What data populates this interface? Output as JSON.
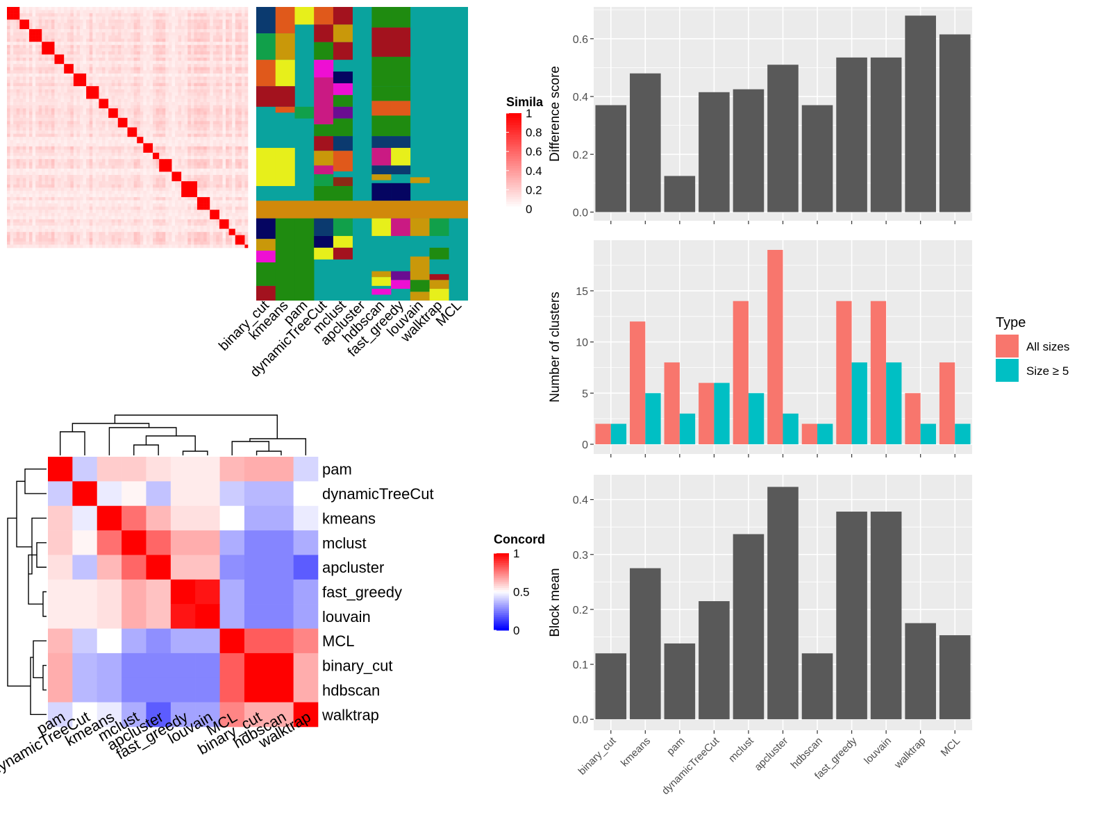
{
  "colors": {
    "panel_bg": "#ebebeb",
    "grid": "#ffffff",
    "bar_dark": "#595959",
    "all_sizes": "#f8766d",
    "size_ge5": "#00bfc4",
    "axis_text": "#4d4d4d",
    "similarity_low": "#ffffff",
    "similarity_high": "#ff0000",
    "concordance_low": "#0000ff",
    "concordance_mid": "#ffffff",
    "concordance_high": "#ff0000"
  },
  "chart_data": [
    {
      "id": "similarity-heatmap",
      "type": "heatmap",
      "legend_title": "Simila",
      "legend_ticks": [
        "1",
        "0.8",
        "0.6",
        "0.4",
        "0.2",
        "0"
      ],
      "matrix_size": 76,
      "block_sizes": [
        4,
        3,
        4,
        4,
        3,
        3,
        4,
        4,
        3,
        3,
        3,
        3,
        2,
        3,
        2,
        4,
        3,
        5,
        4,
        3,
        3,
        2,
        3,
        3
      ],
      "annotation_labels": [
        "binary_cut",
        "kmeans",
        "pam",
        "dynamicTreeCut",
        "mclust",
        "apcluster",
        "hdbscan",
        "fast_greedy",
        "louvain",
        "walktrap",
        "MCL"
      ],
      "annotation_base_color": "#0aa39e",
      "annotation_band_color": "#d1890b",
      "annotation_segments": [
        {
          "col": 0,
          "rows": [
            [
              0,
              0.09,
              "#0b3a6f"
            ],
            [
              0.09,
              0.18,
              "#11a04a"
            ],
            [
              0.18,
              0.27,
              "#e0591b"
            ],
            [
              0.27,
              0.34,
              "#a3121e"
            ],
            [
              0.48,
              0.61,
              "#e7ef1b"
            ],
            [
              0.72,
              0.79,
              "#050561"
            ],
            [
              0.79,
              0.83,
              "#c9980a"
            ],
            [
              0.83,
              0.87,
              "#ee0fd3"
            ],
            [
              0.87,
              0.95,
              "#1f8b10"
            ],
            [
              0.95,
              1,
              "#a3121e"
            ]
          ]
        },
        {
          "col": 1,
          "rows": [
            [
              0,
              0.09,
              "#e0591b"
            ],
            [
              0.09,
              0.18,
              "#c9980a"
            ],
            [
              0.18,
              0.27,
              "#e7ef1b"
            ],
            [
              0.27,
              0.34,
              "#a3121e"
            ],
            [
              0.34,
              0.36,
              "#e0591b"
            ],
            [
              0.48,
              0.61,
              "#e7ef1b"
            ],
            [
              0.72,
              1,
              "#1f8b10"
            ]
          ]
        },
        {
          "col": 2,
          "rows": [
            [
              0,
              0.06,
              "#e7ef1b"
            ],
            [
              0.34,
              0.38,
              "#11a04a"
            ],
            [
              0.72,
              1,
              "#1f8b10"
            ]
          ]
        },
        {
          "col": 3,
          "rows": [
            [
              0,
              0.06,
              "#e0591b"
            ],
            [
              0.06,
              0.12,
              "#a3121e"
            ],
            [
              0.12,
              0.18,
              "#1f8b10"
            ],
            [
              0.18,
              0.24,
              "#ee0fd3"
            ],
            [
              0.24,
              0.4,
              "#ca1a83"
            ],
            [
              0.4,
              0.44,
              "#1f8b10"
            ],
            [
              0.44,
              0.49,
              "#a3121e"
            ],
            [
              0.49,
              0.54,
              "#c9980a"
            ],
            [
              0.54,
              0.57,
              "#ca1a83"
            ],
            [
              0.57,
              0.61,
              "#11a04a"
            ],
            [
              0.61,
              0.66,
              "#1f8b10"
            ],
            [
              0.72,
              0.78,
              "#0b3a6f"
            ],
            [
              0.78,
              0.82,
              "#050561"
            ],
            [
              0.82,
              0.86,
              "#e7ef1b"
            ]
          ]
        },
        {
          "col": 4,
          "rows": [
            [
              0,
              0.06,
              "#a3121e"
            ],
            [
              0.06,
              0.12,
              "#c9980a"
            ],
            [
              0.12,
              0.18,
              "#a3121e"
            ],
            [
              0.22,
              0.26,
              "#050561"
            ],
            [
              0.26,
              0.3,
              "#ee0fd3"
            ],
            [
              0.3,
              0.34,
              "#1f8b10"
            ],
            [
              0.34,
              0.38,
              "#6a0d91"
            ],
            [
              0.38,
              0.44,
              "#1f8b10"
            ],
            [
              0.44,
              0.49,
              "#0b3a6f"
            ],
            [
              0.49,
              0.56,
              "#e0591b"
            ],
            [
              0.58,
              0.61,
              "#8b2a15"
            ],
            [
              0.61,
              0.66,
              "#1f8b10"
            ],
            [
              0.72,
              0.78,
              "#11a04a"
            ],
            [
              0.78,
              0.82,
              "#e7ef1b"
            ],
            [
              0.82,
              0.86,
              "#a3121e"
            ]
          ]
        },
        {
          "col": 6,
          "rows": [
            [
              0,
              0.07,
              "#1f8b10"
            ],
            [
              0.07,
              0.17,
              "#a3121e"
            ],
            [
              0.17,
              0.27,
              "#1f8b10"
            ],
            [
              0.27,
              0.32,
              "#1f8b10"
            ],
            [
              0.32,
              0.37,
              "#e0591b"
            ],
            [
              0.37,
              0.44,
              "#1f8b10"
            ],
            [
              0.44,
              0.48,
              "#0b3a6f"
            ],
            [
              0.48,
              0.54,
              "#ca1a83"
            ],
            [
              0.54,
              0.57,
              "#0b3a6f"
            ],
            [
              0.57,
              0.59,
              "#c9980a"
            ],
            [
              0.6,
              0.66,
              "#050561"
            ],
            [
              0.72,
              0.78,
              "#e7ef1b"
            ],
            [
              0.9,
              0.92,
              "#c9980a"
            ],
            [
              0.92,
              0.95,
              "#e7ef1b"
            ],
            [
              0.96,
              0.98,
              "#ee0fd3"
            ]
          ]
        },
        {
          "col": 7,
          "rows": [
            [
              0,
              0.07,
              "#1f8b10"
            ],
            [
              0.07,
              0.17,
              "#a3121e"
            ],
            [
              0.17,
              0.27,
              "#1f8b10"
            ],
            [
              0.27,
              0.32,
              "#1f8b10"
            ],
            [
              0.32,
              0.37,
              "#e0591b"
            ],
            [
              0.37,
              0.44,
              "#1f8b10"
            ],
            [
              0.44,
              0.48,
              "#0b3a6f"
            ],
            [
              0.48,
              0.54,
              "#e7ef1b"
            ],
            [
              0.54,
              0.57,
              "#0b3a6f"
            ],
            [
              0.6,
              0.66,
              "#050561"
            ],
            [
              0.72,
              0.78,
              "#ca1a83"
            ],
            [
              0.9,
              0.93,
              "#6a0d91"
            ],
            [
              0.93,
              0.96,
              "#ee0fd3"
            ]
          ]
        },
        {
          "col": 8,
          "rows": [
            [
              0.58,
              0.6,
              "#c9980a"
            ],
            [
              0.72,
              0.78,
              "#c9980a"
            ],
            [
              0.78,
              0.85,
              "#0aa39e"
            ],
            [
              0.85,
              0.93,
              "#c9980a"
            ],
            [
              0.93,
              0.97,
              "#1f8b10"
            ],
            [
              0.97,
              1,
              "#c9980a"
            ]
          ]
        },
        {
          "col": 9,
          "rows": [
            [
              0.72,
              0.78,
              "#11a04a"
            ],
            [
              0.82,
              0.86,
              "#1f8b10"
            ],
            [
              0.86,
              0.91,
              "#0aa39e"
            ],
            [
              0.91,
              0.93,
              "#a3121e"
            ],
            [
              0.93,
              0.96,
              "#c9980a"
            ],
            [
              0.96,
              1,
              "#e7ef1b"
            ]
          ]
        }
      ]
    },
    {
      "id": "concordance-heatmap",
      "type": "heatmap",
      "legend_title": "Concord",
      "legend_ticks": [
        "1",
        "0.5",
        "0"
      ],
      "labels": [
        "pam",
        "dynamicTreeCut",
        "kmeans",
        "mclust",
        "apcluster",
        "fast_greedy",
        "louvain",
        "MCL",
        "binary_cut",
        "hdbscan",
        "walktrap"
      ],
      "values": [
        [
          1.0,
          0.4,
          0.6,
          0.6,
          0.56,
          0.54,
          0.54,
          0.64,
          0.66,
          0.66,
          0.42
        ],
        [
          0.4,
          1.0,
          0.46,
          0.52,
          0.38,
          0.54,
          0.54,
          0.4,
          0.36,
          0.36,
          0.5
        ],
        [
          0.6,
          0.46,
          1.0,
          0.78,
          0.64,
          0.56,
          0.56,
          0.5,
          0.34,
          0.34,
          0.46
        ],
        [
          0.6,
          0.52,
          0.78,
          1.0,
          0.8,
          0.66,
          0.66,
          0.34,
          0.26,
          0.26,
          0.34
        ],
        [
          0.56,
          0.38,
          0.64,
          0.8,
          1.0,
          0.62,
          0.62,
          0.28,
          0.26,
          0.26,
          0.18
        ],
        [
          0.54,
          0.54,
          0.56,
          0.66,
          0.62,
          1.0,
          0.96,
          0.34,
          0.26,
          0.26,
          0.32
        ],
        [
          0.54,
          0.54,
          0.56,
          0.66,
          0.62,
          0.96,
          1.0,
          0.34,
          0.26,
          0.26,
          0.32
        ],
        [
          0.64,
          0.4,
          0.5,
          0.34,
          0.28,
          0.34,
          0.34,
          1.0,
          0.82,
          0.82,
          0.74
        ],
        [
          0.66,
          0.36,
          0.34,
          0.26,
          0.26,
          0.26,
          0.26,
          0.82,
          1.0,
          1.0,
          0.66
        ],
        [
          0.66,
          0.36,
          0.34,
          0.26,
          0.26,
          0.26,
          0.26,
          0.82,
          1.0,
          1.0,
          0.66
        ],
        [
          0.42,
          0.5,
          0.46,
          0.34,
          0.18,
          0.32,
          0.32,
          0.74,
          0.66,
          0.66,
          1.0
        ]
      ]
    },
    {
      "id": "difference-score",
      "type": "bar",
      "ylabel": "Difference score",
      "xlabel": "",
      "categories": [
        "binary_cut",
        "kmeans",
        "pam",
        "dynamicTreeCut",
        "mclust",
        "apcluster",
        "hdbscan",
        "fast_greedy",
        "louvain",
        "walktrap",
        "MCL"
      ],
      "values": [
        0.37,
        0.48,
        0.125,
        0.415,
        0.425,
        0.51,
        0.37,
        0.535,
        0.535,
        0.68,
        0.615
      ],
      "ylim": [
        -0.03,
        0.71
      ],
      "yticks": [
        0.0,
        0.2,
        0.4,
        0.6
      ],
      "ytick_labels": [
        "0.0",
        "0.2",
        "0.4",
        "0.6"
      ]
    },
    {
      "id": "number-of-clusters",
      "type": "bar",
      "ylabel": "Number of clusters",
      "xlabel": "",
      "legend_title": "Type",
      "categories": [
        "binary_cut",
        "kmeans",
        "pam",
        "dynamicTreeCut",
        "mclust",
        "apcluster",
        "hdbscan",
        "fast_greedy",
        "louvain",
        "walktrap",
        "MCL"
      ],
      "series": [
        {
          "name": "All sizes",
          "values": [
            2,
            12,
            8,
            6,
            14,
            19,
            2,
            14,
            14,
            5,
            8
          ]
        },
        {
          "name": "Size ≥ 5",
          "values": [
            2,
            5,
            3,
            6,
            5,
            3,
            2,
            8,
            8,
            2,
            2
          ]
        }
      ],
      "ylim": [
        -0.95,
        19.95
      ],
      "yticks": [
        0,
        5,
        10,
        15
      ],
      "ytick_labels": [
        "0",
        "5",
        "10",
        "15"
      ]
    },
    {
      "id": "block-mean",
      "type": "bar",
      "ylabel": "Block mean",
      "xlabel": "",
      "categories": [
        "binary_cut",
        "kmeans",
        "pam",
        "dynamicTreeCut",
        "mclust",
        "apcluster",
        "hdbscan",
        "fast_greedy",
        "louvain",
        "walktrap",
        "MCL"
      ],
      "values": [
        0.12,
        0.275,
        0.138,
        0.215,
        0.337,
        0.423,
        0.12,
        0.378,
        0.378,
        0.175,
        0.153
      ],
      "ylim": [
        -0.02,
        0.445
      ],
      "yticks": [
        0.0,
        0.1,
        0.2,
        0.3,
        0.4
      ],
      "ytick_labels": [
        "0.0",
        "0.1",
        "0.2",
        "0.3",
        "0.4"
      ]
    }
  ]
}
